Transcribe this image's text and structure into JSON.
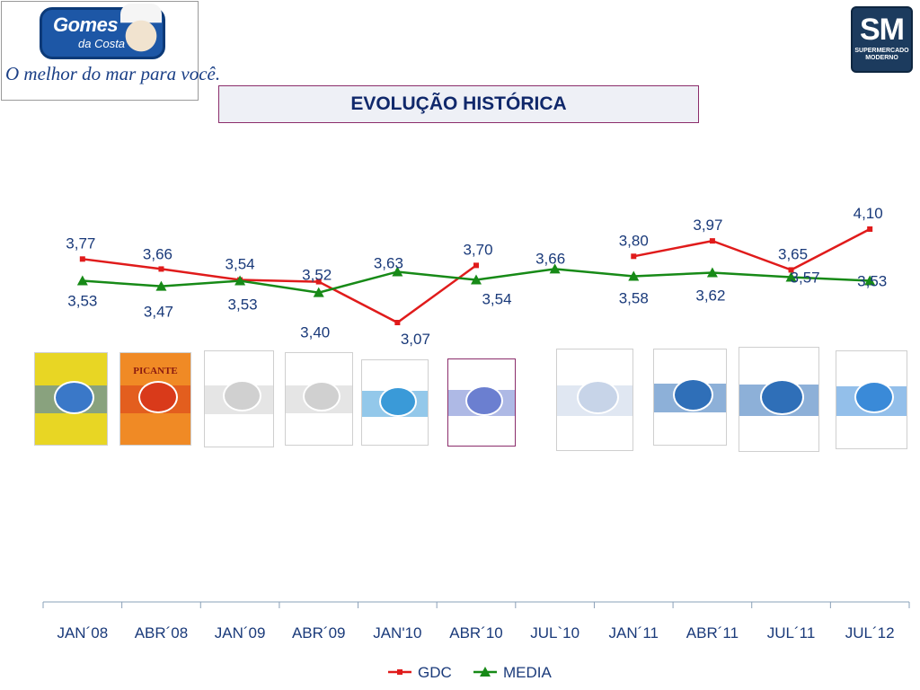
{
  "header": {
    "logo_left": {
      "brand": "Gomes",
      "brand_sub": "da Costa",
      "slogan": "O melhor do mar para você."
    },
    "logo_right": {
      "mark": "SM",
      "sub_line1": "SUPERMERCADO",
      "sub_line2": "MODERNO"
    },
    "title": "EVOLUÇÃO HISTÓRICA"
  },
  "ad_thumbnails": [
    {
      "name": "ad-thumb-jan08",
      "colors": [
        "#e8d624",
        "#3a78c8"
      ]
    },
    {
      "name": "ad-thumb-abr08",
      "colors": [
        "#f08a25",
        "#d93a1a"
      ],
      "caption": "PICANTE"
    },
    {
      "name": "ad-thumb-jan09",
      "colors": [
        "#ffffff",
        "#d0d0d0"
      ]
    },
    {
      "name": "ad-thumb-abr09",
      "colors": [
        "#ffffff",
        "#d0d0d0"
      ]
    },
    {
      "name": "ad-thumb-jan10",
      "colors": [
        "#ffffff",
        "#3a9ad8"
      ]
    },
    {
      "name": "ad-thumb-abr10",
      "colors": [
        "#ffffff",
        "#6b7fd0"
      ]
    },
    {
      "name": "ad-thumb-jul10",
      "colors": [
        "#ffffff",
        "#c7d4e8"
      ]
    },
    {
      "name": "ad-thumb-jan11",
      "colors": [
        "#ffffff",
        "#2f6fb8"
      ]
    },
    {
      "name": "ad-thumb-abr11",
      "colors": [
        "#ffffff",
        "#2f6fb8"
      ]
    },
    {
      "name": "ad-thumb-jul11",
      "colors": [
        "#ffffff",
        "#3a8ad8"
      ]
    },
    {
      "name": "ad-thumb-jul12",
      "colors": [
        "#ffffff",
        "#e06a2a"
      ]
    }
  ],
  "chart_data": {
    "type": "line",
    "categories": [
      "JAN´08",
      "ABR´08",
      "JAN´09",
      "ABR´09",
      "JAN'10",
      "ABR´10",
      "JUL`10",
      "JAN´11",
      "ABR´11",
      "JUL´11",
      "JUL´12"
    ],
    "series": [
      {
        "name": "GDC",
        "color": "#e01b1b",
        "marker": "square",
        "values": [
          3.77,
          3.66,
          3.54,
          3.52,
          3.07,
          3.7,
          null,
          3.8,
          3.97,
          3.65,
          4.1
        ],
        "labels": [
          "3,77",
          "3,66",
          "3,54",
          "3,52",
          "3,07",
          "3,70",
          "",
          "3,80",
          "3,97",
          "3,65",
          "4,10"
        ]
      },
      {
        "name": "MEDIA",
        "color": "#178a17",
        "marker": "triangle",
        "values": [
          3.53,
          3.47,
          3.53,
          3.4,
          3.63,
          3.54,
          3.66,
          3.58,
          3.62,
          3.57,
          3.53
        ],
        "labels": [
          "3,53",
          "3,47",
          "3,53",
          "3,40",
          "3,63",
          "3,54",
          "3,66",
          "3,58",
          "3,62",
          "3,57",
          "3,53"
        ]
      }
    ],
    "legend": "bottom-center",
    "grid": false,
    "y_axis_visible": false
  }
}
